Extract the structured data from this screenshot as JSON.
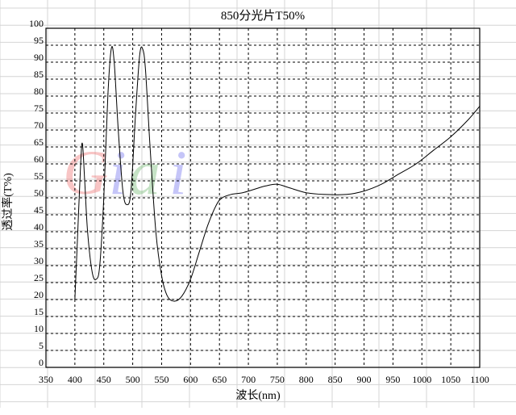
{
  "chart_data": {
    "type": "line",
    "title": "850分光片T50%",
    "xlabel": "波长(nm)",
    "ylabel": "透过率(T%)",
    "xlim": [
      350,
      1100
    ],
    "ylim": [
      0,
      100
    ],
    "xticks": [
      350,
      400,
      450,
      500,
      550,
      600,
      650,
      700,
      750,
      800,
      850,
      900,
      950,
      1000,
      1050,
      1100
    ],
    "yticks": [
      0,
      5,
      10,
      15,
      20,
      25,
      30,
      35,
      40,
      45,
      50,
      55,
      60,
      65,
      70,
      75,
      80,
      85,
      90,
      95,
      100
    ],
    "grid": true,
    "grid_style": "dashed",
    "line_color": "#000000",
    "watermark": "Giai",
    "watermark_colors": [
      "#f08080",
      "#8080f0",
      "#80c080",
      "#8080f0"
    ],
    "series": [
      {
        "x": [
          400,
          405,
          410,
          413,
          417,
          422,
          430,
          437,
          443,
          450,
          457,
          463,
          468,
          475,
          483,
          490,
          497,
          505,
          512,
          517,
          522,
          530,
          540,
          550,
          560,
          572,
          585,
          600,
          615,
          630,
          645,
          655,
          670,
          690,
          710,
          730,
          750,
          770,
          800,
          830,
          870,
          900,
          930,
          960,
          990,
          1020,
          1050,
          1080,
          1100
        ],
        "y": [
          20,
          40,
          60,
          66,
          55,
          40,
          28,
          26,
          30,
          50,
          80,
          94,
          90,
          70,
          52,
          48,
          52,
          75,
          92,
          94,
          88,
          65,
          40,
          27,
          21,
          19.5,
          21,
          26,
          34,
          42,
          48,
          50,
          51,
          51.5,
          52.5,
          53.5,
          54,
          53,
          51.5,
          51,
          51,
          52,
          54,
          57,
          60,
          64,
          68,
          73,
          77
        ]
      }
    ]
  }
}
